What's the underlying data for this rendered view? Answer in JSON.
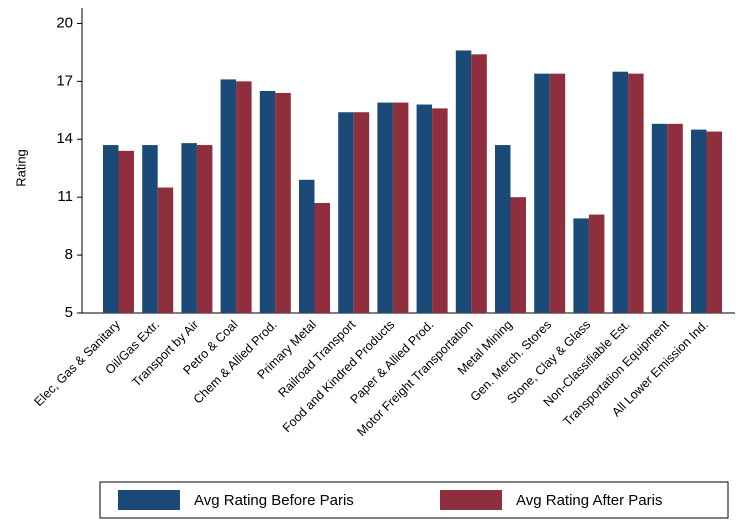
{
  "chart_data": {
    "type": "bar",
    "y_label": "Rating",
    "categories": [
      "Elec, Gas & Sanitary",
      "Oil/Gas Extr.",
      "Transport by Air",
      "Petro & Coal",
      "Chem & Allied Prod.",
      "Primary Metal",
      "Railroad Transport",
      "Food and Kindred Products",
      "Paper & Allied Prod.",
      "Motor Freight Transportation",
      "Metal Mining",
      "Gen. Merch. Stores",
      "Stone, Clay & Glass",
      "Non-Classifiable Est.",
      "Transportation Equipment",
      "All Lower Emission Ind."
    ],
    "series": [
      {
        "name": "Avg Rating Before Paris",
        "color": "#1b4a78",
        "values": [
          13.7,
          13.7,
          13.8,
          17.1,
          16.5,
          11.9,
          15.4,
          15.9,
          15.8,
          18.6,
          13.7,
          17.4,
          9.9,
          17.5,
          14.8,
          14.5
        ]
      },
      {
        "name": "Avg Rating After Paris",
        "color": "#8f2f3d",
        "values": [
          13.4,
          11.5,
          13.7,
          17.0,
          16.4,
          10.7,
          15.4,
          15.9,
          15.6,
          18.4,
          11.0,
          17.4,
          10.1,
          17.4,
          14.8,
          14.4
        ]
      }
    ],
    "ylim": [
      5,
      20.8
    ],
    "yticks": [
      5,
      8,
      11,
      14,
      17,
      20
    ],
    "legend": "bottom"
  }
}
